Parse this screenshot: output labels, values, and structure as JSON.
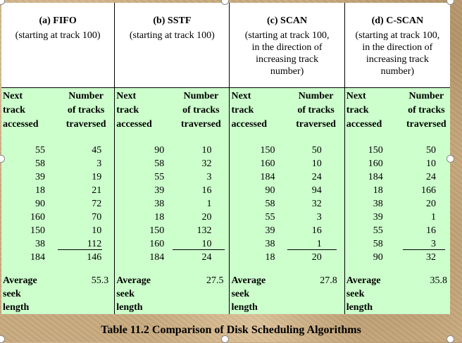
{
  "caption": "Table 11.2   Comparison of Disk Scheduling Algorithms",
  "columns": [
    {
      "title": "(a) FIFO",
      "subtitle": [
        "(starting at track 100)"
      ],
      "head_left": [
        "Next",
        "track",
        "accessed"
      ],
      "head_right": [
        "Number",
        "of tracks",
        "traversed"
      ],
      "next": [
        "55",
        "58",
        "39",
        "18",
        "90",
        "160",
        "150",
        "38",
        "184"
      ],
      "traversed": [
        "45",
        "3",
        "19",
        "21",
        "72",
        "70",
        "10",
        "112",
        "146"
      ],
      "avg_label": [
        "Average",
        "seek",
        "length"
      ],
      "avg_value": "55.3"
    },
    {
      "title": "(b) SSTF",
      "subtitle": [
        "(starting at track 100)"
      ],
      "head_left": [
        "Next",
        "track",
        "accessed"
      ],
      "head_right": [
        "Number",
        "of tracks",
        "traversed"
      ],
      "next": [
        "90",
        "58",
        "55",
        "39",
        "38",
        "18",
        "150",
        "160",
        "184"
      ],
      "traversed": [
        "10",
        "32",
        "3",
        "16",
        "1",
        "20",
        "132",
        "10",
        "24"
      ],
      "avg_label": [
        "Average",
        "seek",
        "length"
      ],
      "avg_value": "27.5"
    },
    {
      "title": "(c) SCAN",
      "subtitle": [
        "(starting at track 100,",
        "in the direction of",
        "increasing track",
        "number)"
      ],
      "head_left": [
        "Next",
        "track",
        "accessed"
      ],
      "head_right": [
        "Number",
        "of tracks",
        "traversed"
      ],
      "next": [
        "150",
        "160",
        "184",
        "90",
        "58",
        "55",
        "39",
        "38",
        "18"
      ],
      "traversed": [
        "50",
        "10",
        "24",
        "94",
        "32",
        "3",
        "16",
        "1",
        "20"
      ],
      "avg_label": [
        "Average",
        "seek",
        "length"
      ],
      "avg_value": "27.8"
    },
    {
      "title": "(d) C-SCAN",
      "subtitle": [
        "(starting at track 100,",
        "in the direction of",
        "increasing track",
        "number)"
      ],
      "head_left": [
        "Next",
        "track",
        "accessed"
      ],
      "head_right": [
        "Number",
        "of tracks",
        "traversed"
      ],
      "next": [
        "150",
        "160",
        "184",
        "18",
        "38",
        "39",
        "55",
        "58",
        "90"
      ],
      "traversed": [
        "50",
        "10",
        "24",
        "166",
        "20",
        "1",
        "16",
        "3",
        "32"
      ],
      "avg_label": [
        "Average",
        "seek",
        "length"
      ],
      "avg_value": "35.8"
    }
  ]
}
